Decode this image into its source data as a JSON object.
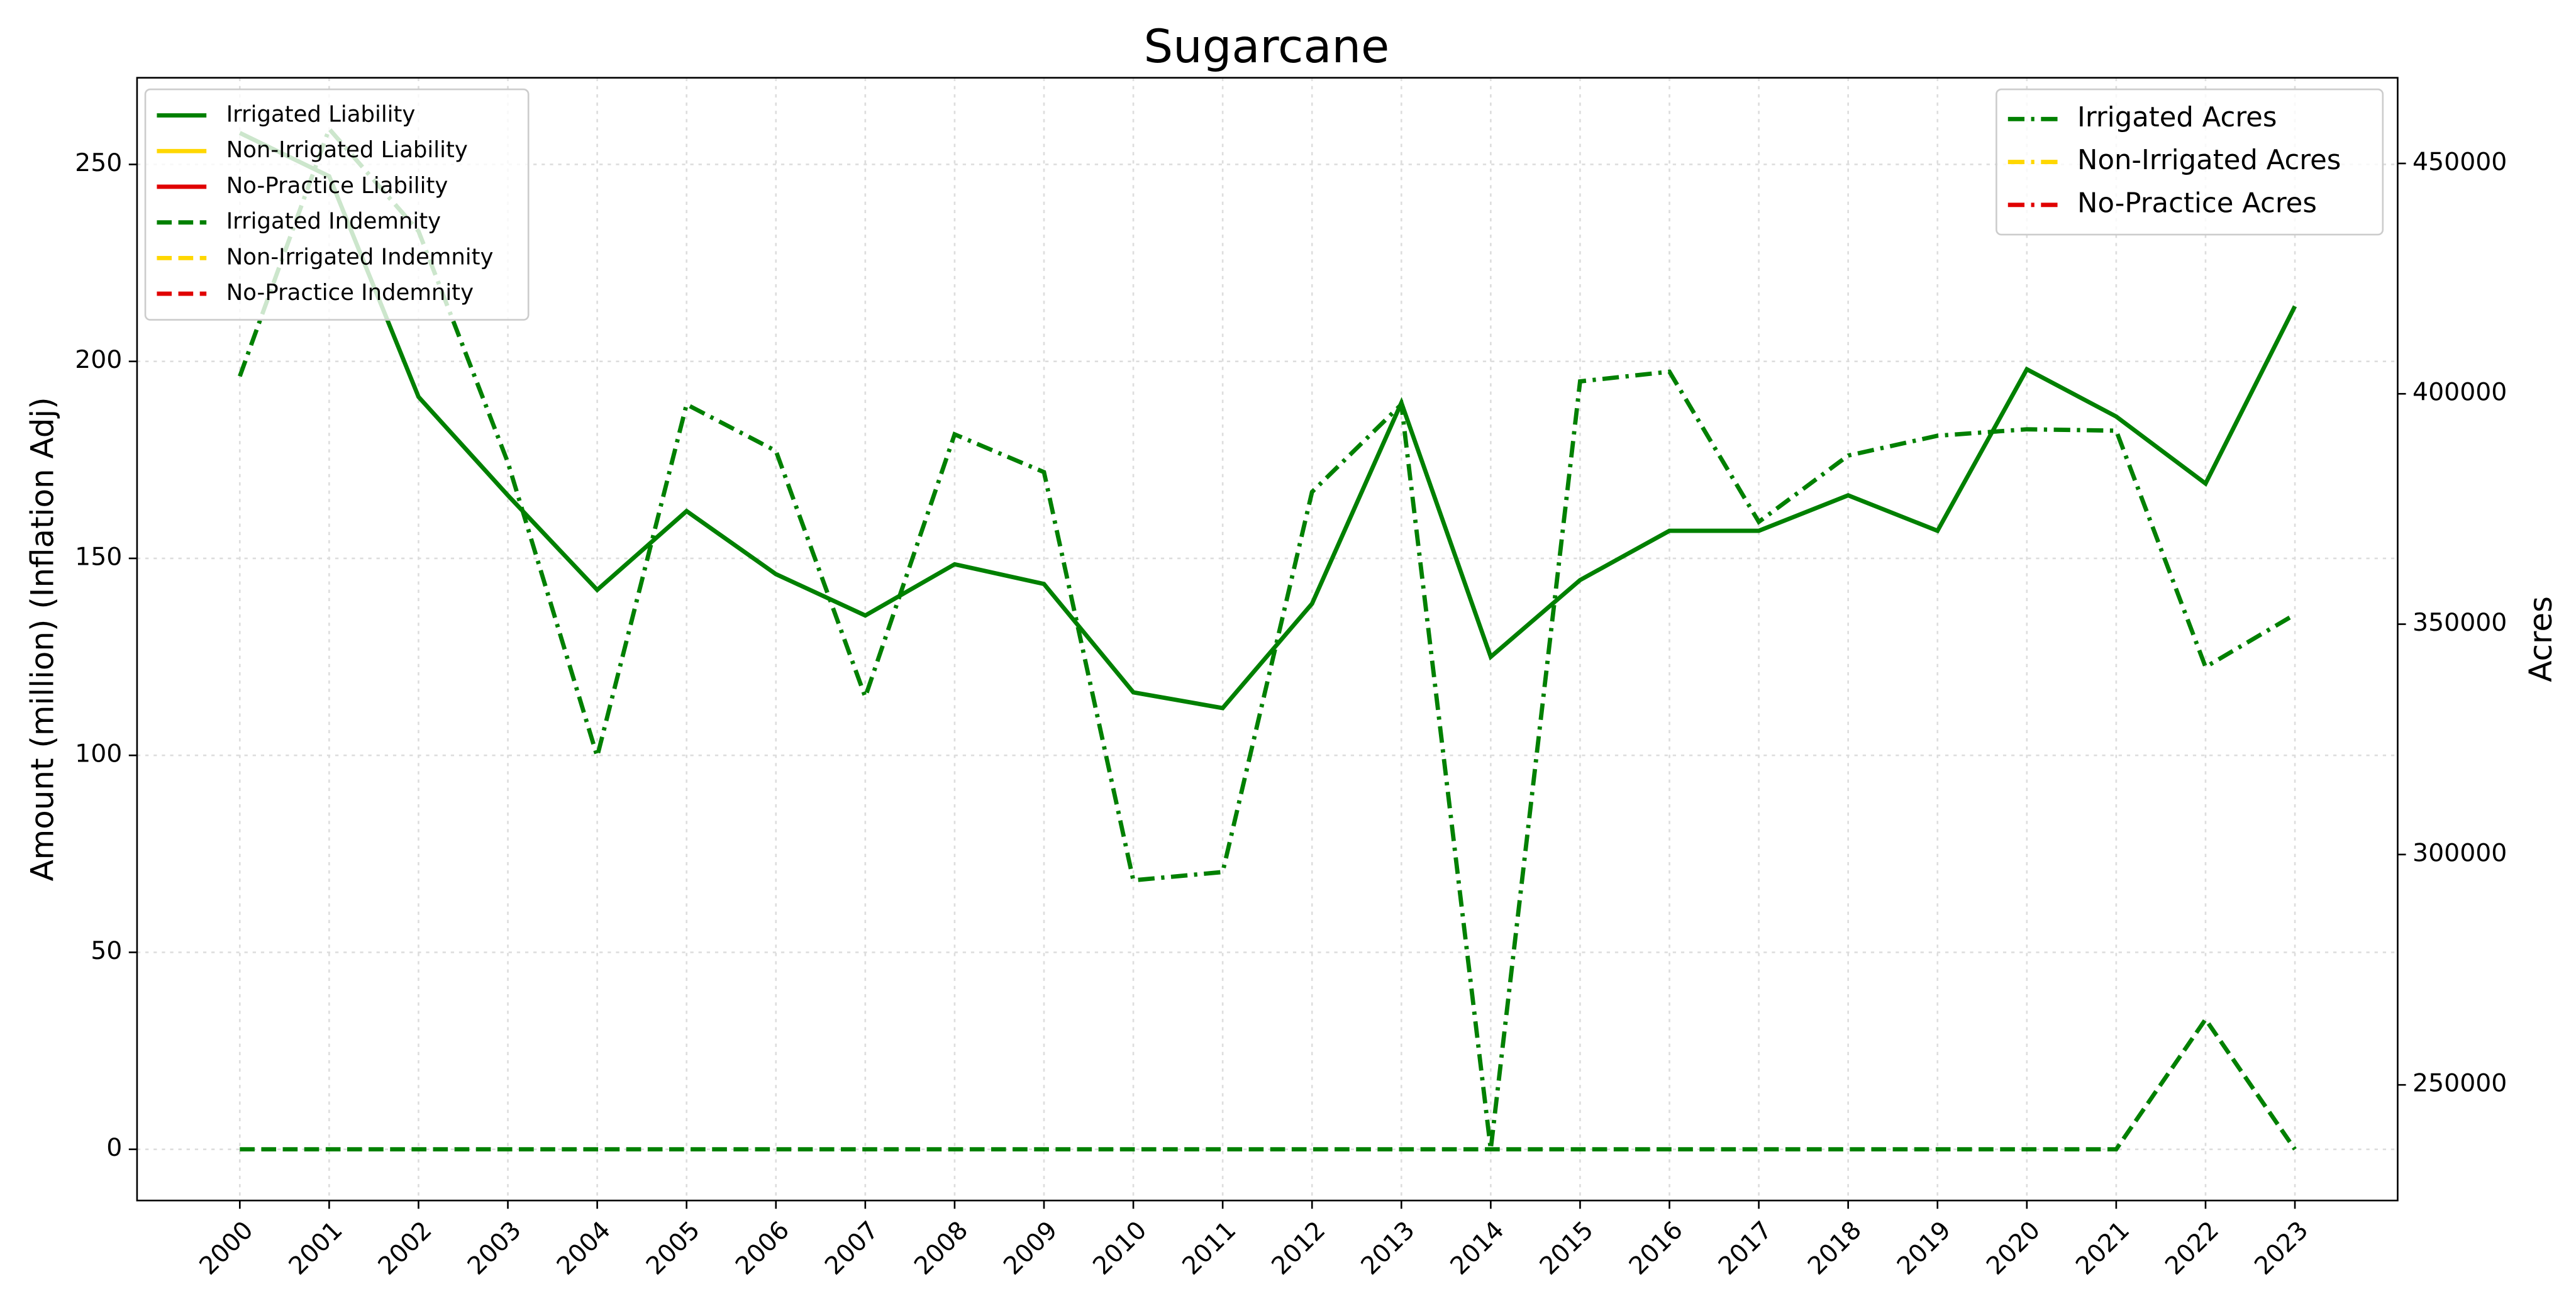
{
  "chart_data": {
    "type": "line",
    "title": "Sugarcane",
    "y_label": "Amount (million) (Inflation Adj)",
    "y2_label": "Acres",
    "x": [
      2000,
      2001,
      2002,
      2003,
      2004,
      2005,
      2006,
      2007,
      2008,
      2009,
      2010,
      2011,
      2012,
      2013,
      2014,
      2015,
      2016,
      2017,
      2018,
      2019,
      2020,
      2021,
      2022,
      2023
    ],
    "xlim": [
      1998.85,
      2024.15
    ],
    "xticks": [
      2000,
      2001,
      2002,
      2003,
      2004,
      2005,
      2006,
      2007,
      2008,
      2009,
      2010,
      2011,
      2012,
      2013,
      2014,
      2015,
      2016,
      2017,
      2018,
      2019,
      2020,
      2021,
      2022,
      2023
    ],
    "ylim": [
      -13,
      272
    ],
    "yticks": [
      0,
      50,
      100,
      150,
      200,
      250
    ],
    "y2lim": [
      224900,
      468600
    ],
    "y2ticks": [
      250000,
      300000,
      350000,
      400000,
      450000
    ],
    "grid": true,
    "legend": "upper left",
    "legend2": "upper right",
    "series": [
      {
        "name": "Irrigated Liability",
        "color": "#008000",
        "linestyle": "solid",
        "values": [
          258,
          247,
          191,
          166,
          142,
          162,
          146,
          135.5,
          148.5,
          143.5,
          116,
          112,
          138.5,
          189.5,
          125,
          144.5,
          157,
          157,
          166,
          157,
          198,
          186,
          169,
          214
        ]
      },
      {
        "name": "Non-Irrigated Liability",
        "color": "#ffd700",
        "linestyle": "solid",
        "values": [
          null,
          null,
          null,
          null,
          null,
          null,
          null,
          null,
          null,
          null,
          null,
          null,
          null,
          null,
          null,
          null,
          null,
          null,
          null,
          null,
          null,
          null,
          null,
          null
        ]
      },
      {
        "name": "No-Practice Liability",
        "color": "#e00000",
        "linestyle": "solid",
        "values": [
          null,
          null,
          null,
          null,
          null,
          null,
          null,
          null,
          null,
          null,
          null,
          null,
          null,
          null,
          null,
          null,
          null,
          null,
          null,
          null,
          null,
          null,
          null,
          null
        ]
      },
      {
        "name": "Irrigated Indemnity",
        "color": "#008000",
        "linestyle": "dashed",
        "values": [
          0,
          0,
          0,
          0,
          0,
          0,
          0,
          0,
          0,
          0,
          0,
          0,
          0,
          0,
          0,
          0,
          0,
          0,
          0,
          0,
          0,
          0,
          33,
          0
        ]
      },
      {
        "name": "Non-Irrigated Indemnity",
        "color": "#ffd700",
        "linestyle": "dashed",
        "values": [
          null,
          null,
          null,
          null,
          null,
          null,
          null,
          null,
          null,
          null,
          null,
          null,
          null,
          null,
          null,
          null,
          null,
          null,
          null,
          null,
          null,
          null,
          null,
          null
        ]
      },
      {
        "name": "No-Practice Indemnity",
        "color": "#e00000",
        "linestyle": "dashed",
        "values": [
          null,
          null,
          null,
          null,
          null,
          null,
          null,
          null,
          null,
          null,
          null,
          null,
          null,
          null,
          null,
          null,
          null,
          null,
          null,
          null,
          null,
          null,
          null,
          null
        ]
      },
      {
        "name": "Irrigated Acres",
        "color": "#008000",
        "linestyle": "dashdot",
        "axis": "y2",
        "values": [
          403800,
          457500,
          435300,
          385100,
          321300,
          397700,
          387600,
          334200,
          391200,
          383000,
          294400,
          296200,
          378700,
          397700,
          236000,
          402700,
          404800,
          372200,
          386600,
          390900,
          392300,
          392000,
          340700,
          352100
        ]
      },
      {
        "name": "Non-Irrigated Acres",
        "color": "#ffd700",
        "linestyle": "dashdot",
        "axis": "y2",
        "values": [
          null,
          null,
          null,
          null,
          null,
          null,
          null,
          null,
          null,
          null,
          null,
          null,
          null,
          null,
          null,
          null,
          null,
          null,
          null,
          null,
          null,
          null,
          null,
          null
        ]
      },
      {
        "name": "No-Practice Acres",
        "color": "#e00000",
        "linestyle": "dashdot",
        "axis": "y2",
        "values": [
          null,
          null,
          null,
          null,
          null,
          null,
          null,
          null,
          null,
          null,
          null,
          null,
          null,
          null,
          null,
          null,
          null,
          null,
          null,
          null,
          null,
          null,
          null,
          null
        ]
      }
    ]
  }
}
